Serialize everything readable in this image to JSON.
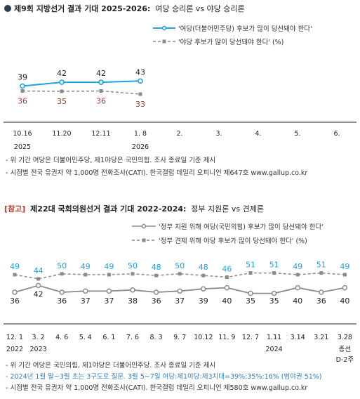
{
  "colors": {
    "blue": "#1aa3e8",
    "gray": "#8a8a8a",
    "brown": "#9b3b36",
    "bracket": "#c0392b",
    "bullet": "#2c3e50",
    "note_blue": "#2f7fbf"
  },
  "chart1": {
    "title_main": "제9회 지방선거 결과 기대 2025-2026:",
    "title_sub": "여당 승리론 vs 야당 승리론",
    "legend": [
      "'여당(더불어민주당) 후보가 많이 당선돼야 한다'",
      "'야당 후보가 많이 당선돼야 한다' (%)"
    ],
    "notes": [
      "- 위 기간 여당은 더불어민주당, 제1야당은 국민의힘. 조사 종료일 기준 제시",
      "- 시점별 전국 유권자 약 1,000명 전화조사(CATI). 한국갤럽 데일리 오피니언 제647호 www.gallup.co.kr"
    ]
  },
  "chart2": {
    "title_ref": "[참고]",
    "title_main": "제22대 국회의원선거 결과 기대 2022-2024:",
    "title_sub": "정부 지원론 vs 견제론",
    "legend": [
      "'정부 지원 위해 여당(국민의힘) 후보가 많이 당선돼야 한다'",
      "'정부 견제 위해 야당 후보가 많이 당선돼야 한다' (%)"
    ],
    "notes": [
      "- 위 기간 여당은 국민의힘, 제1야당은 더불어민주당. 조사 종료일 기준 제시",
      "- 2024년 1월 말~3월 초는 3구도로 질문. 3월 5~7일 여당:제1야당:제3지대=39%:35%:16% (범야권 51%)",
      "- 시점별 전국 유권자 약 1,000명 전화조사(CATI). 한국갤럽 데일리 오피니언 제580호 www.gallup.co.kr"
    ]
  },
  "chart_data": [
    {
      "type": "line",
      "title": "제9회 지방선거 결과 기대 2025-2026: 여당 승리론 vs 야당 승리론",
      "categories": [
        "10.16",
        "11.20",
        "12.11",
        "1. 8",
        "2.",
        "3.",
        "4.",
        "5.",
        "6."
      ],
      "category_sublabels": [
        "2025",
        "",
        "",
        "2026",
        "",
        "",
        "",
        "",
        ""
      ],
      "series": [
        {
          "name": "'여당(더불어민주당) 후보가 많이 당선돼야 한다'",
          "values": [
            39,
            42,
            42,
            43,
            null,
            null,
            null,
            null,
            null
          ],
          "color": "#1aa3e8",
          "style": "solid"
        },
        {
          "name": "'야당 후보가 많이 당선돼야 한다'",
          "values": [
            36,
            35,
            36,
            33,
            null,
            null,
            null,
            null,
            null
          ],
          "color": "#8a8a8a",
          "style": "dashed"
        }
      ],
      "unit": "%",
      "legend_position": "top-right",
      "grid": false
    },
    {
      "type": "line",
      "title": "[참고] 제22대 국회의원선거 결과 기대 2022-2024: 정부 지원론 vs 견제론",
      "categories": [
        "12. 1",
        "3. 2",
        "4. 6",
        "5. 4",
        "6. 1",
        "7. 6",
        "8. 3",
        "9. 7",
        "10.12",
        "11. 9",
        "12. 7",
        "1.11",
        "3.14",
        "3.21",
        "3.28"
      ],
      "category_sublabels": [
        "2022",
        "2023",
        "",
        "",
        "",
        "",
        "",
        "",
        "",
        "",
        "",
        "2024",
        "",
        "",
        "총선 D-2주"
      ],
      "series": [
        {
          "name": "'정부 지원 위해 여당(국민의힘) 후보가 많이 당선돼야 한다'",
          "values": [
            36,
            42,
            36,
            37,
            37,
            38,
            36,
            37,
            39,
            40,
            35,
            35,
            40,
            36,
            40
          ],
          "color": "#8a8a8a",
          "style": "solid"
        },
        {
          "name": "'정부 견제 위해 야당 후보가 많이 당선돼야 한다'",
          "values": [
            49,
            44,
            50,
            49,
            49,
            50,
            48,
            50,
            48,
            46,
            51,
            51,
            49,
            51,
            49
          ],
          "color": "#8a8a8a",
          "style": "dashed"
        }
      ],
      "unit": "%",
      "legend_position": "top-right",
      "grid": false
    }
  ]
}
